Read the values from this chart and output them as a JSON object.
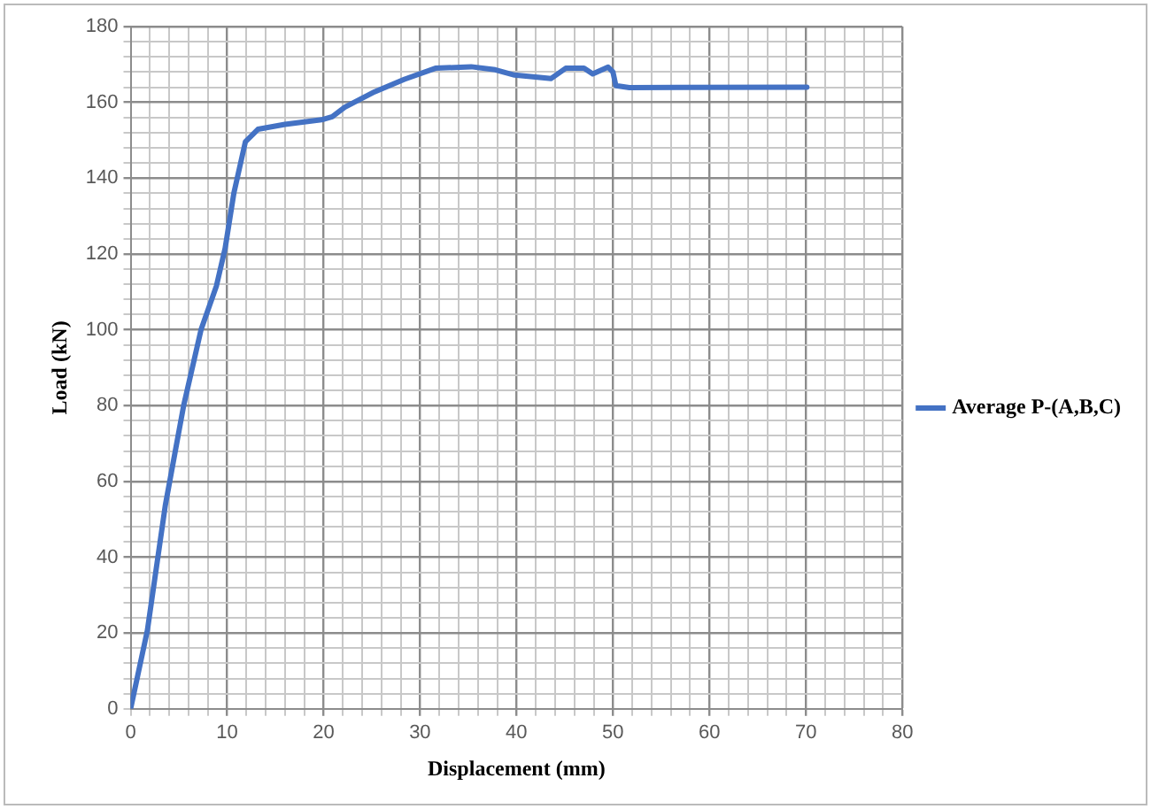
{
  "chart_data": {
    "type": "line",
    "xlabel": "Displacement (mm)",
    "ylabel": "Load (kN)",
    "x": [
      0,
      1.74,
      3.6,
      5.5,
      7.3,
      8.9,
      9.8,
      10.7,
      11.9,
      13.2,
      16.0,
      19.8,
      20.9,
      22.2,
      25.3,
      28.4,
      31.6,
      35.3,
      37.8,
      39.8,
      43.6,
      45.1,
      47.0,
      47.9,
      49.5,
      50.0,
      50.3,
      51.7,
      70.1
    ],
    "series": [
      {
        "name": "Average P-(A,B,C)",
        "color": "#4472c4",
        "values": [
          0,
          20.7,
          53.7,
          80,
          100,
          111.6,
          121.5,
          136,
          149.6,
          152.9,
          154.2,
          155.4,
          156.2,
          158.7,
          162.8,
          166.1,
          169,
          169.4,
          168.6,
          167.2,
          166.3,
          169,
          169,
          167.5,
          169.3,
          168,
          164.4,
          163.9,
          164
        ]
      }
    ],
    "xlim": [
      0,
      80
    ],
    "xticks": [
      0,
      {
        "value": 2,
        "label": null
      },
      {
        "value": 4,
        "label": null
      },
      {
        "value": 6,
        "label": null
      },
      {
        "value": 8,
        "label": null
      },
      10,
      {
        "value": 12,
        "label": null
      },
      {
        "value": 14,
        "label": null
      },
      {
        "value": 16,
        "label": null
      },
      {
        "value": 18,
        "label": null
      },
      20,
      {
        "value": 22,
        "label": null
      },
      {
        "value": 24,
        "label": null
      },
      {
        "value": 26,
        "label": null
      },
      {
        "value": 28,
        "label": null
      },
      30,
      {
        "value": 32,
        "label": null
      },
      {
        "value": 34,
        "label": null
      },
      {
        "value": 36,
        "label": null
      },
      {
        "value": 38,
        "label": null
      },
      40,
      {
        "value": 42,
        "label": null
      },
      {
        "value": 44,
        "label": null
      },
      {
        "value": 46,
        "label": null
      },
      {
        "value": 48,
        "label": null
      },
      50,
      {
        "value": 52,
        "label": null
      },
      {
        "value": 54,
        "label": null
      },
      {
        "value": 56,
        "label": null
      },
      {
        "value": 58,
        "label": null
      },
      60,
      {
        "value": 62,
        "label": null
      },
      {
        "value": 64,
        "label": null
      },
      {
        "value": 66,
        "label": null
      },
      {
        "value": 68,
        "label": null
      },
      70,
      {
        "value": 72,
        "label": null
      },
      {
        "value": 74,
        "label": null
      },
      {
        "value": 76,
        "label": null
      },
      {
        "value": 78,
        "label": null
      },
      80
    ],
    "ylim": [
      0,
      180
    ],
    "yticks": [
      0,
      {
        "value": 4,
        "label": null
      },
      {
        "value": 8,
        "label": null
      },
      {
        "value": 12,
        "label": null
      },
      {
        "value": 16,
        "label": null
      },
      20,
      {
        "value": 24,
        "label": null
      },
      {
        "value": 28,
        "label": null
      },
      {
        "value": 32,
        "label": null
      },
      {
        "value": 36,
        "label": null
      },
      40,
      {
        "value": 44,
        "label": null
      },
      {
        "value": 48,
        "label": null
      },
      {
        "value": 52,
        "label": null
      },
      {
        "value": 56,
        "label": null
      },
      60,
      {
        "value": 64,
        "label": null
      },
      {
        "value": 68,
        "label": null
      },
      {
        "value": 72,
        "label": null
      },
      {
        "value": 76,
        "label": null
      },
      80,
      {
        "value": 84,
        "label": null
      },
      {
        "value": 88,
        "label": null
      },
      {
        "value": 92,
        "label": null
      },
      {
        "value": 96,
        "label": null
      },
      100,
      {
        "value": 104,
        "label": null
      },
      {
        "value": 108,
        "label": null
      },
      {
        "value": 112,
        "label": null
      },
      {
        "value": 116,
        "label": null
      },
      120,
      {
        "value": 124,
        "label": null
      },
      {
        "value": 128,
        "label": null
      },
      {
        "value": 132,
        "label": null
      },
      {
        "value": 136,
        "label": null
      },
      140,
      {
        "value": 144,
        "label": null
      },
      {
        "value": 148,
        "label": null
      },
      {
        "value": 152,
        "label": null
      },
      {
        "value": 156,
        "label": null
      },
      160,
      {
        "value": 164,
        "label": null
      },
      {
        "value": 168,
        "label": null
      },
      {
        "value": 172,
        "label": null
      },
      {
        "value": 176,
        "label": null
      },
      180
    ],
    "grid": true,
    "legend": "right",
    "marker": "none",
    "line_style": "solid"
  }
}
